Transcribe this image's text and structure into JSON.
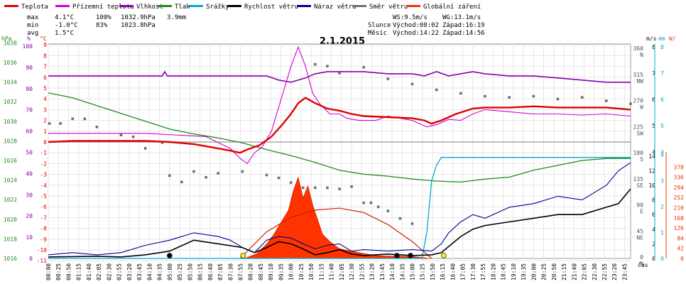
{
  "chart_data": {
    "type": "line",
    "title": "2.1.2015",
    "legend": [
      {
        "key": "teplota",
        "label": "Teplota",
        "color": "#e00000"
      },
      {
        "key": "prizemni",
        "label": "Přízemní teplota",
        "color": "#d000d0"
      },
      {
        "key": "vlhkost",
        "label": "Vlhkost",
        "color": "#8800aa"
      },
      {
        "key": "tlak",
        "label": "Tlak",
        "color": "#1e8c1e"
      },
      {
        "key": "srazky",
        "label": "Srážky",
        "color": "#00a8d8"
      },
      {
        "key": "rychlost",
        "label": "Rychlost větru",
        "color": "#000000"
      },
      {
        "key": "naraz",
        "label": "Náraz větru",
        "color": "#000090"
      },
      {
        "key": "smer",
        "label": "Směr větru",
        "color": "#707070"
      },
      {
        "key": "zareni",
        "label": "Globální záření",
        "color": "#ee3300"
      }
    ],
    "stats": {
      "max_label": "max",
      "max_temp": "4.1°C",
      "max_hum": "100%",
      "max_press": "1032.9hPa",
      "max_rain": "3.9mm",
      "min_label": "min",
      "min_temp": "-1.0°C",
      "min_hum": "83%",
      "min_press": "1023.8hPa",
      "avg_label": "avg",
      "avg_temp": "1.5°C"
    },
    "wind_info": {
      "ws": "WS:9.5m/s",
      "wg": "WG:13.1m/s"
    },
    "sun_info": {
      "slunce_label": "Slunce",
      "slunce_vychod": "Východ:08:02",
      "slunce_zapad": "Západ:16:19",
      "mesic_label": "Měsíc",
      "mesic_vychod": "Východ:14:22",
      "mesic_zapad": "Západ:14:56"
    },
    "axis_units": {
      "hpa": "hPa",
      "pct": "%",
      "degc": "°C",
      "ms": "m/s",
      "mm": "mm",
      "cas": "čas"
    },
    "hpa_ticks": [
      1016,
      1018,
      1020,
      1022,
      1024,
      1026,
      1028,
      1030,
      1032,
      1034,
      1036,
      1038
    ],
    "pct_ticks": [
      0,
      10,
      20,
      30,
      40,
      50,
      60,
      70,
      80,
      90,
      100
    ],
    "temp_ticks": [
      -11,
      -10,
      -9,
      -8,
      -7,
      -6,
      -5,
      -4,
      -3,
      -2,
      -1,
      0,
      1,
      2,
      3,
      4,
      5,
      6,
      7,
      8,
      9
    ],
    "dir_ticks": [
      {
        "deg": "0",
        "lbl": "N"
      },
      {
        "deg": "45",
        "lbl": "NE"
      },
      {
        "deg": "90",
        "lbl": "E"
      },
      {
        "deg": "135",
        "lbl": "SE"
      },
      {
        "deg": "180",
        "lbl": "S"
      },
      {
        "deg": "225",
        "lbl": "SW"
      },
      {
        "deg": "270",
        "lbl": "W"
      },
      {
        "deg": "315",
        "lbl": "NW"
      },
      {
        "deg": "360",
        "lbl": "N"
      }
    ],
    "ms_ticks_upper": [
      4,
      5,
      6,
      7,
      8
    ],
    "ms_ticks_lower": [
      0,
      2,
      4,
      6,
      8,
      10,
      12,
      14
    ],
    "mm_ticks_upper": [
      4,
      5,
      6,
      7,
      8
    ],
    "mm_ticks_lower": [
      0,
      1,
      2,
      3,
      4
    ],
    "wm_ticks": [
      0,
      42,
      84,
      126,
      168,
      210,
      252,
      294,
      336,
      378
    ],
    "x_ticks": [
      "00:00",
      "00:25",
      "00:50",
      "01:15",
      "01:40",
      "02:05",
      "02:30",
      "02:55",
      "03:20",
      "03:45",
      "04:10",
      "04:35",
      "05:00",
      "05:25",
      "05:50",
      "06:15",
      "06:40",
      "07:05",
      "07:30",
      "07:55",
      "08:20",
      "08:45",
      "09:10",
      "09:35",
      "10:00",
      "10:25",
      "10:50",
      "11:15",
      "11:40",
      "12:05",
      "12:30",
      "12:55",
      "13:20",
      "13:45",
      "14:10",
      "14:35",
      "15:00",
      "15:25",
      "15:50",
      "16:15",
      "16:40",
      "17:05",
      "17:30",
      "17:55",
      "18:20",
      "18:45",
      "19:10",
      "19:35",
      "20:00",
      "20:25",
      "20:50",
      "21:15",
      "21:40",
      "22:05",
      "22:30",
      "22:55",
      "23:20",
      "23:45"
    ],
    "series": {
      "teplota": [
        [
          0,
          0.0
        ],
        [
          1,
          0.1
        ],
        [
          2,
          0.1
        ],
        [
          3,
          0.1
        ],
        [
          4,
          0.1
        ],
        [
          5,
          0.0
        ],
        [
          6,
          -0.2
        ],
        [
          7,
          -0.6
        ],
        [
          7.5,
          -0.8
        ],
        [
          7.9,
          -1.0
        ],
        [
          8.2,
          -0.7
        ],
        [
          8.7,
          -0.3
        ],
        [
          9.2,
          0.5
        ],
        [
          9.6,
          1.5
        ],
        [
          10.0,
          2.6
        ],
        [
          10.3,
          3.6
        ],
        [
          10.6,
          4.1
        ],
        [
          11.0,
          3.6
        ],
        [
          11.5,
          3.1
        ],
        [
          12.0,
          2.9
        ],
        [
          12.5,
          2.6
        ],
        [
          13.0,
          2.4
        ],
        [
          14.0,
          2.3
        ],
        [
          15.0,
          2.2
        ],
        [
          15.5,
          2.0
        ],
        [
          15.8,
          1.7
        ],
        [
          16.2,
          2.0
        ],
        [
          16.8,
          2.6
        ],
        [
          17.5,
          3.1
        ],
        [
          18.0,
          3.2
        ],
        [
          19.0,
          3.2
        ],
        [
          20.0,
          3.3
        ],
        [
          21.0,
          3.2
        ],
        [
          22.0,
          3.2
        ],
        [
          23.0,
          3.2
        ],
        [
          24.0,
          3.0
        ]
      ],
      "prizemni": [
        [
          0,
          0.8
        ],
        [
          4,
          0.8
        ],
        [
          6.5,
          0.5
        ],
        [
          7.5,
          -0.6
        ],
        [
          7.9,
          -1.5
        ],
        [
          8.2,
          -2.0
        ],
        [
          8.5,
          -1.0
        ],
        [
          8.8,
          -0.5
        ],
        [
          9.2,
          1.0
        ],
        [
          9.6,
          4.0
        ],
        [
          10.0,
          7.0
        ],
        [
          10.3,
          8.8
        ],
        [
          10.6,
          7.0
        ],
        [
          10.9,
          4.5
        ],
        [
          11.2,
          3.5
        ],
        [
          11.6,
          2.6
        ],
        [
          12.0,
          2.6
        ],
        [
          12.3,
          2.2
        ],
        [
          12.8,
          2.0
        ],
        [
          13.5,
          2.0
        ],
        [
          14.0,
          2.4
        ],
        [
          15.0,
          2.0
        ],
        [
          15.6,
          1.4
        ],
        [
          16.0,
          1.6
        ],
        [
          16.5,
          2.1
        ],
        [
          17.0,
          2.0
        ],
        [
          17.5,
          2.6
        ],
        [
          18.0,
          3.0
        ],
        [
          19.0,
          2.8
        ],
        [
          20.0,
          2.6
        ],
        [
          21.0,
          2.6
        ],
        [
          22.0,
          2.5
        ],
        [
          23.0,
          2.6
        ],
        [
          24.0,
          2.4
        ]
      ],
      "vlhkost": [
        [
          0,
          86
        ],
        [
          4.7,
          86
        ],
        [
          4.8,
          88
        ],
        [
          4.9,
          86
        ],
        [
          9.0,
          86
        ],
        [
          9.5,
          84
        ],
        [
          10.0,
          83
        ],
        [
          10.6,
          85
        ],
        [
          11.0,
          87
        ],
        [
          11.5,
          88
        ],
        [
          12.0,
          88
        ],
        [
          13.0,
          88
        ],
        [
          14.0,
          87
        ],
        [
          15.0,
          87
        ],
        [
          15.5,
          86
        ],
        [
          16.0,
          88
        ],
        [
          16.5,
          86
        ],
        [
          17.0,
          87
        ],
        [
          17.5,
          88
        ],
        [
          18.0,
          87
        ],
        [
          19.0,
          86
        ],
        [
          20.0,
          86
        ],
        [
          21.0,
          85
        ],
        [
          22.0,
          84
        ],
        [
          23.0,
          83
        ],
        [
          24.0,
          83
        ]
      ],
      "tlak": [
        [
          0,
          1032.9
        ],
        [
          1,
          1032.4
        ],
        [
          2,
          1031.6
        ],
        [
          3,
          1030.8
        ],
        [
          4,
          1030.0
        ],
        [
          5,
          1029.2
        ],
        [
          6,
          1028.7
        ],
        [
          7,
          1028.3
        ],
        [
          8,
          1027.8
        ],
        [
          9,
          1027.1
        ],
        [
          10,
          1026.5
        ],
        [
          11,
          1025.8
        ],
        [
          12,
          1025.0
        ],
        [
          13,
          1024.6
        ],
        [
          14,
          1024.4
        ],
        [
          15,
          1024.1
        ],
        [
          16,
          1023.9
        ],
        [
          17,
          1023.8
        ],
        [
          18,
          1024.1
        ],
        [
          19,
          1024.3
        ],
        [
          20,
          1025.0
        ],
        [
          21,
          1025.5
        ],
        [
          22,
          1026.0
        ],
        [
          23,
          1026.2
        ],
        [
          24,
          1026.2
        ]
      ],
      "srazky": [
        [
          0,
          0
        ],
        [
          15.4,
          0
        ],
        [
          15.6,
          1.0
        ],
        [
          15.8,
          3.0
        ],
        [
          16.0,
          3.6
        ],
        [
          16.2,
          3.9
        ],
        [
          24,
          3.9
        ]
      ],
      "rychlost": [
        [
          0,
          0.2
        ],
        [
          2,
          0.3
        ],
        [
          3,
          0.2
        ],
        [
          4,
          0.5
        ],
        [
          5,
          1.0
        ],
        [
          6,
          2.5
        ],
        [
          7,
          2.0
        ],
        [
          8,
          1.5
        ],
        [
          8.5,
          0.8
        ],
        [
          9,
          1.5
        ],
        [
          9.5,
          2.3
        ],
        [
          10,
          2.0
        ],
        [
          10.5,
          1.3
        ],
        [
          11,
          0.5
        ],
        [
          11.5,
          0.8
        ],
        [
          12,
          1.2
        ],
        [
          12.5,
          0.6
        ],
        [
          13,
          0.4
        ],
        [
          14,
          0.6
        ],
        [
          15,
          0.4
        ],
        [
          15.8,
          0.5
        ],
        [
          16.2,
          0.8
        ],
        [
          17,
          3.0
        ],
        [
          17.5,
          4.0
        ],
        [
          18,
          4.5
        ],
        [
          19,
          5.0
        ],
        [
          20,
          5.5
        ],
        [
          21,
          6.0
        ],
        [
          22,
          6.0
        ],
        [
          23,
          7.0
        ],
        [
          23.5,
          7.5
        ],
        [
          24,
          9.5
        ]
      ],
      "naraz": [
        [
          0,
          0.5
        ],
        [
          1,
          0.8
        ],
        [
          2,
          0.5
        ],
        [
          3,
          0.8
        ],
        [
          4,
          1.8
        ],
        [
          5,
          2.5
        ],
        [
          6,
          3.5
        ],
        [
          7,
          3.0
        ],
        [
          7.5,
          2.5
        ],
        [
          8,
          1.5
        ],
        [
          8.5,
          0.8
        ],
        [
          9,
          2.5
        ],
        [
          9.5,
          3.0
        ],
        [
          10,
          2.8
        ],
        [
          10.5,
          2.0
        ],
        [
          11,
          1.3
        ],
        [
          11.5,
          1.8
        ],
        [
          12,
          2.0
        ],
        [
          12.5,
          1.0
        ],
        [
          13,
          1.2
        ],
        [
          14,
          1.0
        ],
        [
          15,
          1.2
        ],
        [
          15.8,
          1.0
        ],
        [
          16.2,
          2.0
        ],
        [
          16.5,
          3.5
        ],
        [
          17,
          5.0
        ],
        [
          17.5,
          6.0
        ],
        [
          18,
          5.5
        ],
        [
          19,
          7.0
        ],
        [
          20,
          7.5
        ],
        [
          21,
          8.5
        ],
        [
          22,
          8.0
        ],
        [
          23,
          10.0
        ],
        [
          23.5,
          12.0
        ],
        [
          24,
          13.1
        ]
      ],
      "zareni_peak": [
        [
          8.1,
          0
        ],
        [
          8.6,
          20
        ],
        [
          9.0,
          60
        ],
        [
          9.3,
          100
        ],
        [
          9.6,
          150
        ],
        [
          9.9,
          200
        ],
        [
          10.1,
          280
        ],
        [
          10.3,
          335
        ],
        [
          10.5,
          250
        ],
        [
          10.7,
          300
        ],
        [
          10.9,
          220
        ],
        [
          11.1,
          160
        ],
        [
          11.3,
          100
        ],
        [
          11.6,
          70
        ],
        [
          12.0,
          40
        ],
        [
          12.5,
          30
        ],
        [
          13.0,
          20
        ],
        [
          13.5,
          12
        ],
        [
          14.0,
          10
        ],
        [
          15.0,
          8
        ],
        [
          15.7,
          0
        ]
      ],
      "zareni_theory": [
        [
          7.9,
          0
        ],
        [
          8.5,
          60
        ],
        [
          9.0,
          110
        ],
        [
          10.0,
          170
        ],
        [
          11.0,
          200
        ],
        [
          12.0,
          208
        ],
        [
          13.0,
          190
        ],
        [
          14.0,
          140
        ],
        [
          15.0,
          70
        ],
        [
          15.8,
          0
        ]
      ],
      "smer": [
        [
          0.05,
          233
        ],
        [
          0.5,
          233
        ],
        [
          1.0,
          241
        ],
        [
          1.5,
          241
        ],
        [
          2.0,
          227
        ],
        [
          3.0,
          213
        ],
        [
          3.5,
          210
        ],
        [
          4.0,
          190
        ],
        [
          4.7,
          200
        ],
        [
          5.0,
          143
        ],
        [
          5.5,
          132
        ],
        [
          6.0,
          150
        ],
        [
          6.5,
          140
        ],
        [
          7.0,
          147
        ],
        [
          8.0,
          150
        ],
        [
          9.0,
          144
        ],
        [
          9.5,
          139
        ],
        [
          10.0,
          131
        ],
        [
          10.5,
          122
        ],
        [
          11.0,
          122
        ],
        [
          11.5,
          122
        ],
        [
          12.0,
          120
        ],
        [
          12.5,
          124
        ],
        [
          13.0,
          96
        ],
        [
          13.3,
          96
        ],
        [
          13.6,
          89
        ],
        [
          14.0,
          82
        ],
        [
          14.5,
          69
        ],
        [
          15.0,
          60
        ],
        [
          11.0,
          335
        ],
        [
          11.5,
          332
        ],
        [
          12.0,
          320
        ],
        [
          13.0,
          330
        ],
        [
          14.0,
          310
        ],
        [
          15.0,
          301
        ],
        [
          16.0,
          291
        ],
        [
          17.0,
          285
        ],
        [
          18.0,
          280
        ],
        [
          19.0,
          278
        ],
        [
          20.0,
          280
        ],
        [
          21.0,
          275
        ],
        [
          22.0,
          278
        ],
        [
          23.0,
          272
        ],
        [
          24.0,
          267
        ]
      ]
    }
  }
}
